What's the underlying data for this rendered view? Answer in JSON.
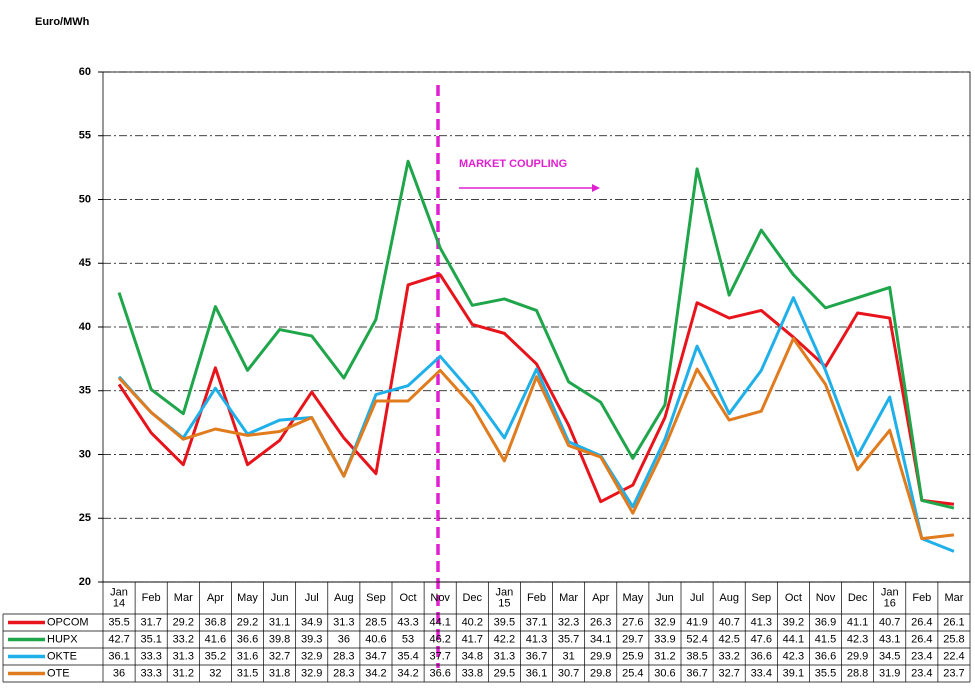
{
  "chart_data": {
    "type": "line",
    "y_label": "Euro/MWh",
    "annotation": "MARKET COUPLING",
    "categories": [
      "Jan 14",
      "Feb",
      "Mar",
      "Apr",
      "May",
      "Jun",
      "Jul",
      "Aug",
      "Sep",
      "Oct",
      "Nov",
      "Dec",
      "Jan 15",
      "Feb",
      "Mar",
      "Apr",
      "May",
      "Jun",
      "Jul",
      "Aug",
      "Sep",
      "Oct",
      "Nov",
      "Dec",
      "Jan 16",
      "Feb",
      "Mar"
    ],
    "series": [
      {
        "name": "OPCOM",
        "color": "#e8141b",
        "values": [
          35.5,
          31.7,
          29.2,
          36.8,
          29.2,
          31.1,
          34.9,
          31.3,
          28.5,
          43.3,
          44.1,
          40.2,
          39.5,
          37.1,
          32.3,
          26.3,
          27.6,
          32.9,
          41.9,
          40.7,
          41.3,
          39.2,
          36.9,
          41.1,
          40.7,
          26.4,
          26.1
        ]
      },
      {
        "name": "HUPX",
        "color": "#1fa54a",
        "values": [
          42.7,
          35.1,
          33.2,
          41.6,
          36.6,
          39.8,
          39.3,
          36,
          40.6,
          53,
          46.2,
          41.7,
          42.2,
          41.3,
          35.7,
          34.1,
          29.7,
          33.9,
          52.4,
          42.5,
          47.6,
          44.1,
          41.5,
          42.3,
          43.1,
          26.4,
          25.8
        ]
      },
      {
        "name": "OKTE",
        "color": "#1fb0ea",
        "values": [
          36.1,
          33.3,
          31.3,
          35.2,
          31.6,
          32.7,
          32.9,
          28.3,
          34.7,
          35.4,
          37.7,
          34.8,
          31.3,
          36.7,
          31,
          29.9,
          25.9,
          31.2,
          38.5,
          33.2,
          36.6,
          42.3,
          36.6,
          29.9,
          34.5,
          23.4,
          22.4
        ]
      },
      {
        "name": "OTE",
        "color": "#e07b1e",
        "values": [
          36,
          33.3,
          31.2,
          32,
          31.5,
          31.8,
          32.9,
          28.3,
          34.2,
          34.2,
          36.6,
          33.8,
          29.5,
          36.1,
          30.7,
          29.8,
          25.4,
          30.6,
          36.7,
          32.7,
          33.4,
          39.1,
          35.5,
          28.8,
          31.9,
          23.4,
          23.7
        ]
      }
    ],
    "ylim": [
      20,
      60
    ],
    "yticks": [
      20,
      25,
      30,
      35,
      40,
      45,
      50,
      55,
      60
    ],
    "grid": true
  }
}
